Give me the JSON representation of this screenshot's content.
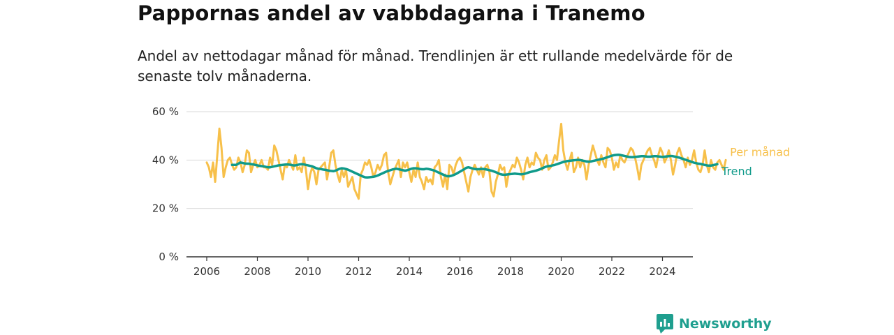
{
  "chart_data": {
    "type": "line",
    "title": "Pappornas andel av vabbdagarna i Tranemo",
    "subtitle": "Andel av nettodagar månad för månad. Trendlinjen är ett rullande medelvärde för de senaste tolv månaderna.",
    "x_ticks": [
      "2006",
      "2008",
      "2010",
      "2012",
      "2014",
      "2016",
      "2018",
      "2020",
      "2022",
      "2024"
    ],
    "y_ticks": [
      "0 %",
      "20 %",
      "40 %",
      "60 %"
    ],
    "ylim": [
      0,
      60
    ],
    "xlim": [
      2005.2,
      2025.2
    ],
    "grid": true,
    "series": [
      {
        "name": "Per månad",
        "color": "#f7c04a",
        "x_start": 2006.0,
        "step": 0.0833333,
        "values": [
          39,
          37,
          33,
          39,
          31,
          42,
          53,
          45,
          33,
          37,
          40,
          41,
          38,
          36,
          37,
          41,
          39,
          35,
          38,
          44,
          43,
          35,
          38,
          40,
          37,
          38,
          40,
          37,
          37,
          36,
          41,
          38,
          46,
          44,
          40,
          36,
          32,
          38,
          37,
          40,
          38,
          36,
          42,
          36,
          37,
          35,
          41,
          36,
          28,
          34,
          37,
          35,
          30,
          36,
          37,
          38,
          39,
          32,
          37,
          43,
          44,
          38,
          34,
          31,
          36,
          33,
          36,
          29,
          31,
          33,
          28,
          26,
          24,
          34,
          36,
          39,
          38,
          40,
          37,
          33,
          35,
          38,
          36,
          38,
          42,
          43,
          35,
          30,
          33,
          36,
          38,
          40,
          33,
          39,
          37,
          39,
          35,
          31,
          36,
          33,
          39,
          33,
          31,
          28,
          33,
          31,
          32,
          30,
          37,
          38,
          40,
          33,
          29,
          34,
          28,
          38,
          37,
          34,
          38,
          40,
          41,
          39,
          35,
          31,
          27,
          33,
          36,
          38,
          36,
          34,
          37,
          33,
          37,
          38,
          35,
          27,
          25,
          31,
          34,
          38,
          36,
          37,
          29,
          34,
          36,
          38,
          37,
          41,
          39,
          36,
          32,
          38,
          41,
          37,
          39,
          38,
          43,
          41,
          40,
          36,
          40,
          42,
          36,
          37,
          39,
          42,
          40,
          48,
          55,
          44,
          39,
          36,
          40,
          43,
          35,
          37,
          41,
          37,
          40,
          38,
          32,
          38,
          42,
          46,
          43,
          40,
          38,
          42,
          39,
          37,
          45,
          44,
          41,
          36,
          39,
          37,
          42,
          40,
          39,
          41,
          43,
          45,
          44,
          41,
          37,
          32,
          38,
          40,
          42,
          44,
          45,
          42,
          40,
          37,
          42,
          45,
          43,
          39,
          41,
          44,
          40,
          34,
          38,
          43,
          45,
          42,
          40,
          37,
          41,
          38,
          40,
          44,
          39,
          36,
          35,
          38,
          44,
          38,
          35,
          40,
          37,
          36,
          39,
          40,
          38,
          36,
          40
        ],
        "label": "Per månad"
      },
      {
        "name": "Trend",
        "color": "#0f9a8a",
        "x_start": 2007.0,
        "step": 0.0833333,
        "values": [
          38,
          38,
          38,
          38.5,
          39,
          38.8,
          38.6,
          38.5,
          38.5,
          38.3,
          38.2,
          38.0,
          37.8,
          37.6,
          37.5,
          37.4,
          37.2,
          37.0,
          37.0,
          37.2,
          37.4,
          37.6,
          37.8,
          37.9,
          38.0,
          38.1,
          38.2,
          38.1,
          38.0,
          37.8,
          37.8,
          38.0,
          38.2,
          38.3,
          38.2,
          38.0,
          37.8,
          37.6,
          37.4,
          37.0,
          36.6,
          36.4,
          36.3,
          36.1,
          36.0,
          35.8,
          35.6,
          35.5,
          35.4,
          35.6,
          36.0,
          36.4,
          36.6,
          36.5,
          36.3,
          36.0,
          35.6,
          35.2,
          34.8,
          34.4,
          34.0,
          33.6,
          33.2,
          32.9,
          32.8,
          32.9,
          33.0,
          33.1,
          33.3,
          33.6,
          34.0,
          34.4,
          34.8,
          35.2,
          35.5,
          35.8,
          36.1,
          36.3,
          36.4,
          36.2,
          36.0,
          35.8,
          35.6,
          35.8,
          36.1,
          36.4,
          36.6,
          36.6,
          36.5,
          36.3,
          36.2,
          36.2,
          36.4,
          36.3,
          36.1,
          35.9,
          35.6,
          35.2,
          34.8,
          34.4,
          34.0,
          33.6,
          33.3,
          33.3,
          33.5,
          33.8,
          34.2,
          34.7,
          35.2,
          35.7,
          36.2,
          36.8,
          37.0,
          36.8,
          36.5,
          36.3,
          36.2,
          36.2,
          36.3,
          36.3,
          36.2,
          36.0,
          35.8,
          35.6,
          35.3,
          35.0,
          34.6,
          34.2,
          34.0,
          33.9,
          34.0,
          34.1,
          34.2,
          34.3,
          34.4,
          34.3,
          34.2,
          34.1,
          34.2,
          34.4,
          34.7,
          35.0,
          35.2,
          35.4,
          35.6,
          35.9,
          36.2,
          36.6,
          37.0,
          37.3,
          37.5,
          37.6,
          37.8,
          38.0,
          38.3,
          38.6,
          38.9,
          39.2,
          39.4,
          39.6,
          39.7,
          39.8,
          39.9,
          40.0,
          40.1,
          40.0,
          39.8,
          39.6,
          39.4,
          39.3,
          39.4,
          39.6,
          39.8,
          40.0,
          40.2,
          40.4,
          40.6,
          40.9,
          41.2,
          41.5,
          41.8,
          42.0,
          42.1,
          42.2,
          42.1,
          41.9,
          41.7,
          41.5,
          41.3,
          41.2,
          41.2,
          41.3,
          41.4,
          41.5,
          41.6,
          41.6,
          41.5,
          41.4,
          41.4,
          41.5,
          41.6,
          41.6,
          41.5,
          41.4,
          41.3,
          41.4,
          41.5,
          41.6,
          41.7,
          41.6,
          41.4,
          41.2,
          41.0,
          40.7,
          40.4,
          40.1,
          39.8,
          39.5,
          39.2,
          38.9,
          38.7,
          38.5,
          38.4,
          38.2,
          38.0,
          37.8,
          37.7,
          37.7,
          37.9,
          38.1,
          38.3
        ],
        "label": "Trend"
      }
    ]
  },
  "brand": {
    "name": "Newsworthy",
    "icon": "newsworthy-logo-icon",
    "color": "#1f9f8f"
  }
}
